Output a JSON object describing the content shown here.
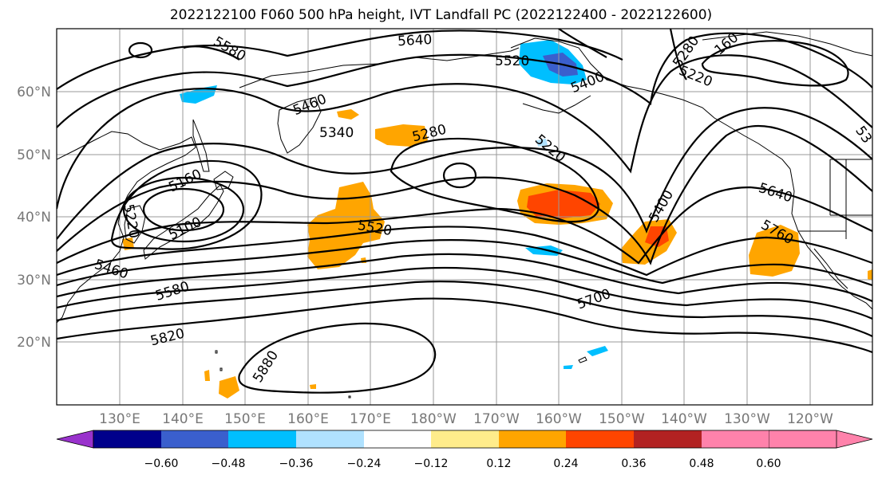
{
  "title": "2022122100 F060 500 hPa height, IVT Landfall PC (2022122400 - 2022122600)",
  "lat_labels": [
    "60°N",
    "50°N",
    "40°N",
    "30°N",
    "20°N"
  ],
  "lon_labels": [
    "130°E",
    "140°E",
    "150°E",
    "160°E",
    "170°E",
    "180°W",
    "170°W",
    "160°W",
    "150°W",
    "140°W",
    "130°W",
    "120°W"
  ],
  "contour_labels": [
    "5640",
    "5580",
    "5520",
    "5400",
    "5280",
    "160",
    "5220",
    "5460",
    "5340",
    "5280",
    "5220",
    "5160",
    "5220",
    "5100",
    "5460",
    "5520",
    "5400",
    "5640",
    "5760",
    "5580",
    "5700",
    "5820",
    "5880",
    "53"
  ],
  "colorbar": {
    "ticks": [
      "−0.60",
      "−0.48",
      "−0.36",
      "−0.24",
      "−0.12",
      "0.12",
      "0.24",
      "0.36",
      "0.48",
      "0.60"
    ],
    "colors": [
      "#9932CC",
      "#00008B",
      "#3A5FCD",
      "#00BFFF",
      "#B0E2FF",
      "#FFFFFF",
      "#FFEC8B",
      "#FFA500",
      "#FF4500",
      "#B22222",
      "#FF82AB"
    ]
  }
}
